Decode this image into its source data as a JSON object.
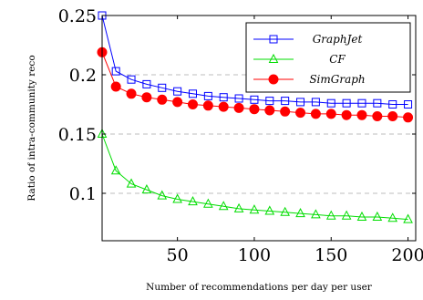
{
  "chart_data": {
    "type": "line",
    "xlabel": "Number of recommendations per day per user",
    "ylabel": "Ratio of intra-community reco",
    "xlim": [
      1,
      205
    ],
    "ylim": [
      0.06,
      0.25
    ],
    "x_ticks": [
      50,
      100,
      150,
      200
    ],
    "y_ticks": [
      0.1,
      0.15,
      0.2,
      0.25
    ],
    "x_tick_labels": [
      "50",
      "100",
      "150",
      "200"
    ],
    "y_tick_labels": [
      "0.1",
      "0.15",
      "0.2",
      "0.25"
    ],
    "grid": "horizontal dashed",
    "legend_position": "top-right",
    "x": [
      1,
      10,
      20,
      30,
      40,
      50,
      60,
      70,
      80,
      90,
      100,
      110,
      120,
      130,
      140,
      150,
      160,
      170,
      180,
      190,
      200
    ],
    "series": [
      {
        "name": "GraphJet",
        "color": "#0000ff",
        "marker": "square",
        "values": [
          0.25,
          0.203,
          0.196,
          0.192,
          0.189,
          0.186,
          0.184,
          0.182,
          0.181,
          0.18,
          0.179,
          0.178,
          0.178,
          0.177,
          0.177,
          0.176,
          0.176,
          0.176,
          0.176,
          0.175,
          0.175
        ]
      },
      {
        "name": "CF",
        "color": "#00dd00",
        "marker": "triangle",
        "values": [
          0.15,
          0.119,
          0.108,
          0.103,
          0.098,
          0.095,
          0.093,
          0.091,
          0.089,
          0.087,
          0.086,
          0.085,
          0.084,
          0.083,
          0.082,
          0.081,
          0.081,
          0.08,
          0.08,
          0.079,
          0.078
        ]
      },
      {
        "name": "SimGraph",
        "color": "#ff0000",
        "marker": "circle",
        "values": [
          0.219,
          0.19,
          0.184,
          0.181,
          0.179,
          0.177,
          0.175,
          0.174,
          0.173,
          0.172,
          0.171,
          0.17,
          0.169,
          0.168,
          0.167,
          0.167,
          0.166,
          0.166,
          0.165,
          0.165,
          0.164
        ]
      }
    ]
  }
}
